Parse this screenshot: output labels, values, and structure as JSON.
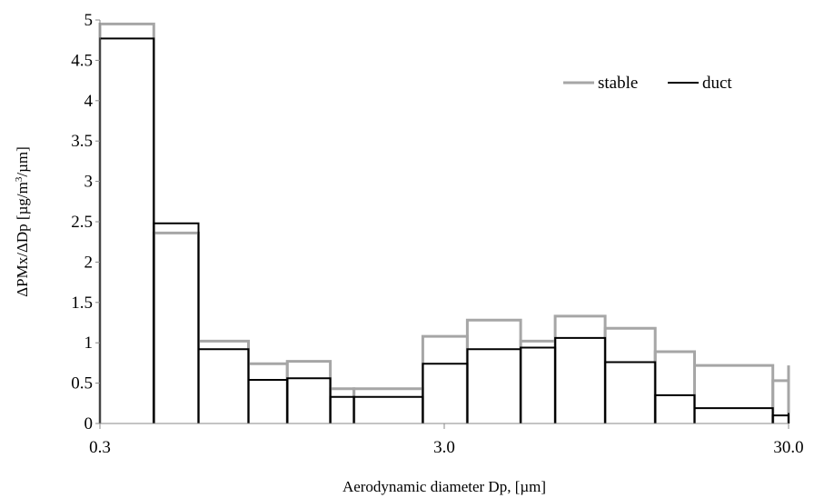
{
  "chart_data": {
    "type": "line",
    "subtype": "step-histogram",
    "xlabel": "Aerodynamic diameter Dp, [µm]",
    "ylabel_prefix": "ΔPMx/ΔDp [µg/m",
    "ylabel_sup": "3",
    "ylabel_suffix": "/µm]",
    "x_scale": "log",
    "xlim": [
      0.3,
      30.0
    ],
    "ylim": [
      0,
      5
    ],
    "x_ticks": [
      0.3,
      3.0,
      30.0
    ],
    "x_tick_labels": [
      "0.3",
      "3.0",
      "30.0"
    ],
    "y_ticks": [
      0,
      0.5,
      1,
      1.5,
      2,
      2.5,
      3,
      3.5,
      4,
      4.5,
      5
    ],
    "y_tick_labels": [
      "0",
      "0.5",
      "1",
      "1.5",
      "2",
      "2.5",
      "3",
      "3.5",
      "4",
      "4.5",
      "5"
    ],
    "bin_edges": [
      0.3,
      0.43,
      0.58,
      0.81,
      1.05,
      1.4,
      1.64,
      2.6,
      3.5,
      5.0,
      6.3,
      8.8,
      12.3,
      16.0,
      27.0,
      30.0
    ],
    "grid": false,
    "legend_position": "top-right",
    "series": [
      {
        "name": "stable",
        "color": "#a6a6a6",
        "values": [
          4.95,
          2.36,
          1.02,
          0.74,
          0.77,
          0.43,
          0.43,
          1.08,
          1.28,
          1.02,
          1.33,
          1.18,
          0.89,
          0.72,
          0.53,
          0.72
        ]
      },
      {
        "name": "duct",
        "color": "#000000",
        "values": [
          4.77,
          2.48,
          0.92,
          0.54,
          0.56,
          0.33,
          0.33,
          0.74,
          0.92,
          0.94,
          1.06,
          0.76,
          0.35,
          0.19,
          0.1,
          0.13
        ]
      }
    ]
  }
}
